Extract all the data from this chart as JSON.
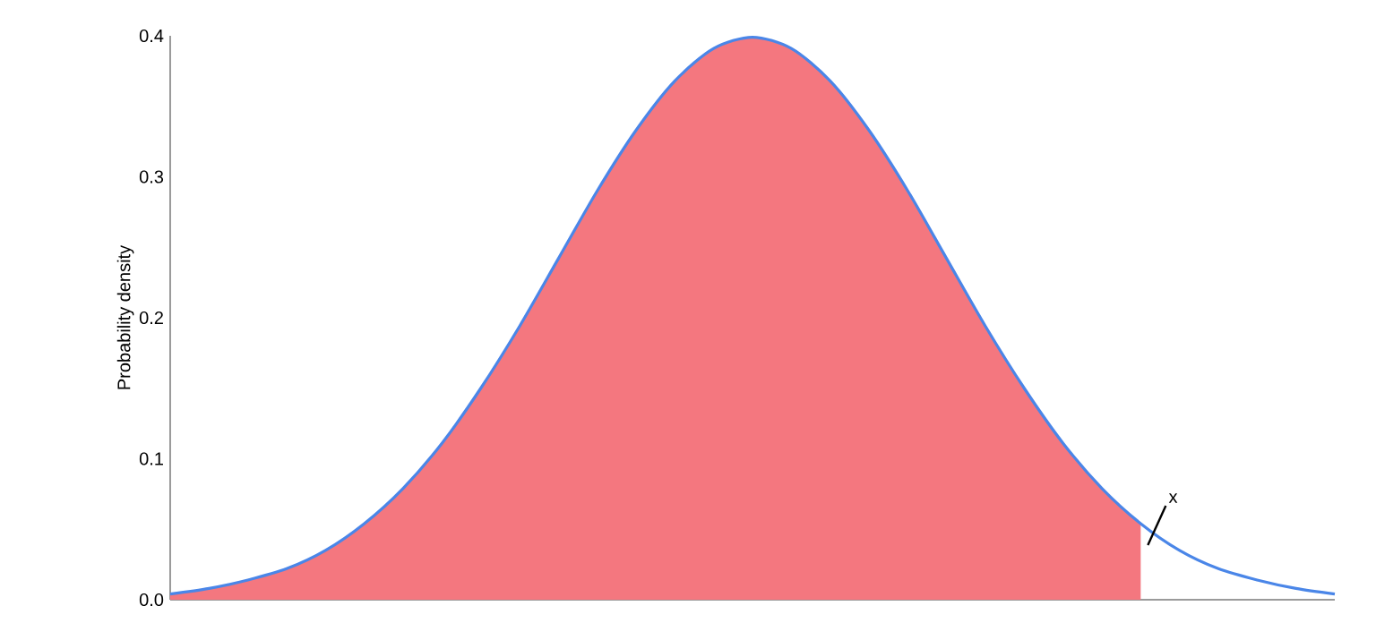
{
  "chart_data": {
    "type": "line",
    "ylabel": "Probability density",
    "categories": [
      null,
      null,
      null,
      null,
      null,
      null,
      null,
      null,
      null,
      null,
      null,
      null,
      null,
      null,
      null,
      null,
      null,
      null,
      null,
      null,
      null,
      null,
      null,
      null,
      null,
      null,
      null,
      null,
      null,
      null,
      null
    ],
    "series": [
      {
        "type": "area",
        "color": "#f4777f",
        "values": [
          0.004,
          0.008,
          0.014,
          0.022,
          0.035,
          0.054,
          0.079,
          0.111,
          0.15,
          0.194,
          0.242,
          0.29,
          0.333,
          0.368,
          0.391,
          0.399,
          0.391,
          0.368,
          0.333,
          0.29,
          0.242,
          0.194,
          0.15,
          0.111,
          0.079,
          0.054,
          null,
          null,
          null,
          null,
          null
        ]
      },
      {
        "color": "#4a86e8",
        "values": [
          0.004,
          0.008,
          0.014,
          0.022,
          0.035,
          0.054,
          0.079,
          0.111,
          0.15,
          0.194,
          0.242,
          0.29,
          0.333,
          0.368,
          0.391,
          0.399,
          0.391,
          0.368,
          0.333,
          0.29,
          0.242,
          0.194,
          0.15,
          0.111,
          0.079,
          0.054,
          0.035,
          0.022,
          0.014,
          0.008,
          0.004
        ]
      }
    ],
    "ylim": [
      0,
      0.4
    ],
    "yticks": [
      {
        "value": 0,
        "label": "0.0"
      },
      0.1,
      0.2,
      0.3,
      0.4
    ],
    "tick_labels": "y",
    "grid": false,
    "annotations": [
      "x"
    ]
  }
}
